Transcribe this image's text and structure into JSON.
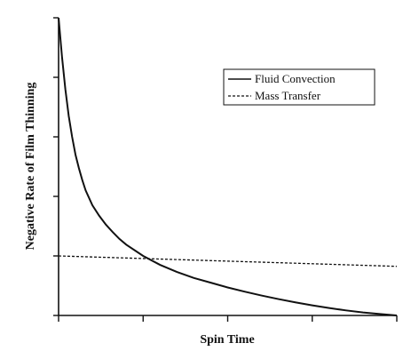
{
  "chart_data": {
    "type": "line",
    "title": "",
    "xlabel": "Spin Time",
    "ylabel": "Negative Rate of Film Thinning",
    "xlim": [
      0,
      100
    ],
    "ylim": [
      0,
      100
    ],
    "x_ticks": 5,
    "y_ticks": 6,
    "tick_labels_shown": false,
    "grid": false,
    "legend_position": "top-right",
    "series": [
      {
        "name": "Fluid Convection",
        "style": "solid",
        "x": [
          0,
          1,
          2,
          3,
          4,
          5,
          6,
          7,
          8,
          10,
          12,
          14,
          16,
          18,
          20,
          25,
          30,
          35,
          40,
          45,
          50,
          55,
          60,
          65,
          70,
          75,
          80,
          85,
          90,
          95,
          100
        ],
        "y": [
          100,
          87,
          76,
          67,
          60,
          54,
          49.5,
          45.5,
          42,
          37,
          33.5,
          30.5,
          28,
          25.7,
          23.8,
          20,
          17,
          14.6,
          12.6,
          11,
          9.4,
          8,
          6.7,
          5.5,
          4.4,
          3.4,
          2.5,
          1.7,
          1.0,
          0.5,
          0
        ]
      },
      {
        "name": "Mass Transfer",
        "style": "dashed",
        "x": [
          0,
          100
        ],
        "y": [
          20,
          16.5
        ]
      }
    ]
  }
}
